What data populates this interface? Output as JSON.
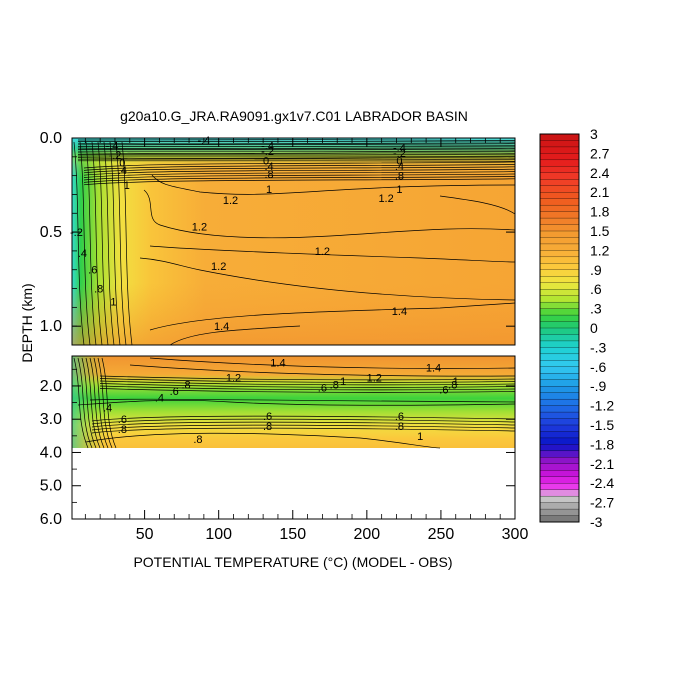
{
  "chart_data": {
    "type": "heatmap",
    "title": "g20a10.G_JRA.RA9091.gx1v7.C01 LABRADOR BASIN",
    "xlabel": "POTENTIAL TEMPERATURE (°C) (MODEL - OBS)",
    "ylabel": "DEPTH (km)",
    "x_ticks": [
      50,
      100,
      150,
      200,
      250,
      300
    ],
    "x_tick_labels": [
      "50",
      "100",
      "150",
      "200",
      "250",
      "300"
    ],
    "xlim": [
      1,
      300
    ],
    "upper_panel": {
      "ylim": [
        0.0,
        1.1
      ],
      "y_ticks": [
        0.0,
        0.5,
        1.0
      ],
      "y_tick_labels": [
        "0.0",
        "0.5",
        "1.0"
      ]
    },
    "lower_panel": {
      "ylim": [
        1.1,
        6.0
      ],
      "y_ticks": [
        2.0,
        3.0,
        4.0,
        5.0,
        6.0
      ],
      "y_tick_labels": [
        "2.0",
        "3.0",
        "4.0",
        "5.0",
        "6.0"
      ],
      "data_bottom_depth": 3.9
    },
    "colorbar": {
      "range": [
        -3,
        3
      ],
      "tick_values": [
        3,
        2.7,
        2.4,
        2.1,
        1.8,
        1.5,
        1.2,
        0.9,
        0.6,
        0.3,
        0,
        -0.3,
        -0.6,
        -0.9,
        -1.2,
        -1.5,
        -1.8,
        -2.1,
        -2.4,
        -2.7,
        -3
      ],
      "tick_labels": [
        "3",
        "2.7",
        "2.4",
        "2.1",
        "1.8",
        "1.5",
        "1.2",
        ".9",
        ".6",
        ".3",
        "0",
        "-.3",
        "-.6",
        "-.9",
        "-1.2",
        "-1.5",
        "-1.8",
        "-2.1",
        "-2.4",
        "-2.7",
        "-3"
      ],
      "stops": [
        {
          "v": 3.0,
          "c": "#c81414"
        },
        {
          "v": 2.6,
          "c": "#e41c1c"
        },
        {
          "v": 2.3,
          "c": "#f03c28"
        },
        {
          "v": 2.0,
          "c": "#f05a1e"
        },
        {
          "v": 1.7,
          "c": "#f07a28"
        },
        {
          "v": 1.45,
          "c": "#f39b30"
        },
        {
          "v": 1.2,
          "c": "#f7ad38"
        },
        {
          "v": 0.95,
          "c": "#fbc83c"
        },
        {
          "v": 0.7,
          "c": "#f0e640"
        },
        {
          "v": 0.45,
          "c": "#b4e632"
        },
        {
          "v": 0.2,
          "c": "#3cd23c"
        },
        {
          "v": 0.0,
          "c": "#1ec878"
        },
        {
          "v": -0.3,
          "c": "#1ed2d2"
        },
        {
          "v": -0.6,
          "c": "#32c8f0"
        },
        {
          "v": -0.9,
          "c": "#1e9be6"
        },
        {
          "v": -1.2,
          "c": "#1e6ee6"
        },
        {
          "v": -1.5,
          "c": "#1e3cdc"
        },
        {
          "v": -1.8,
          "c": "#0a14c8"
        },
        {
          "v": -2.05,
          "c": "#8c14c8"
        },
        {
          "v": -2.3,
          "c": "#d214dc"
        },
        {
          "v": -2.5,
          "c": "#f046f0"
        },
        {
          "v": -2.6,
          "c": "#d2d2d2"
        },
        {
          "v": -2.8,
          "c": "#a0a0a0"
        },
        {
          "v": -3.0,
          "c": "#6e6e6e"
        }
      ]
    },
    "contour_labels": [
      {
        "x": 90,
        "depth": 0.01,
        "text": "-.4"
      },
      {
        "x": 133,
        "depth": 0.04,
        "text": "-.4"
      },
      {
        "x": 133,
        "depth": 0.07,
        "text": "-.2"
      },
      {
        "x": 222,
        "depth": 0.05,
        "text": "-.4"
      },
      {
        "x": 222,
        "depth": 0.08,
        "text": "-.2"
      },
      {
        "x": 28,
        "depth": 0.04,
        "text": "-.4"
      },
      {
        "x": 30,
        "depth": 0.09,
        "text": "-.2"
      },
      {
        "x": 35,
        "depth": 0.13,
        "text": "0"
      },
      {
        "x": 35,
        "depth": 0.17,
        "text": ".4"
      },
      {
        "x": 132,
        "depth": 0.12,
        "text": "0"
      },
      {
        "x": 134,
        "depth": 0.15,
        "text": ".4"
      },
      {
        "x": 134,
        "depth": 0.19,
        "text": ".8"
      },
      {
        "x": 222,
        "depth": 0.12,
        "text": "0"
      },
      {
        "x": 222,
        "depth": 0.15,
        "text": ".4"
      },
      {
        "x": 222,
        "depth": 0.2,
        "text": ".8"
      },
      {
        "x": 38,
        "depth": 0.25,
        "text": "1"
      },
      {
        "x": 134,
        "depth": 0.27,
        "text": "1"
      },
      {
        "x": 222,
        "depth": 0.27,
        "text": "1"
      },
      {
        "x": 108,
        "depth": 0.33,
        "text": "1.2"
      },
      {
        "x": 213,
        "depth": 0.32,
        "text": "1.2"
      },
      {
        "x": 87,
        "depth": 0.47,
        "text": "1.2"
      },
      {
        "x": 170,
        "depth": 0.6,
        "text": "1.2"
      },
      {
        "x": 100,
        "depth": 0.68,
        "text": "1.2"
      },
      {
        "x": 4,
        "depth": 0.5,
        "text": "-.2"
      },
      {
        "x": 8,
        "depth": 0.61,
        "text": ".4"
      },
      {
        "x": 15,
        "depth": 0.7,
        "text": ".6"
      },
      {
        "x": 19,
        "depth": 0.8,
        "text": ".8"
      },
      {
        "x": 29,
        "depth": 0.87,
        "text": "1"
      },
      {
        "x": 102,
        "depth": 1.0,
        "text": "1.4"
      },
      {
        "x": 222,
        "depth": 0.92,
        "text": "1.4"
      },
      {
        "x": 140,
        "depth": 1.3,
        "text": "1.4"
      },
      {
        "x": 245,
        "depth": 1.45,
        "text": "1.4"
      },
      {
        "x": 110,
        "depth": 1.75,
        "text": "1.2"
      },
      {
        "x": 205,
        "depth": 1.75,
        "text": "1.2"
      },
      {
        "x": 78,
        "depth": 1.95,
        "text": ".8"
      },
      {
        "x": 70,
        "depth": 2.15,
        "text": ".6"
      },
      {
        "x": 60,
        "depth": 2.35,
        "text": ".4"
      },
      {
        "x": 170,
        "depth": 2.05,
        "text": ".6"
      },
      {
        "x": 178,
        "depth": 1.95,
        "text": ".8"
      },
      {
        "x": 184,
        "depth": 1.85,
        "text": "1"
      },
      {
        "x": 252,
        "depth": 2.1,
        "text": ".6"
      },
      {
        "x": 258,
        "depth": 1.95,
        "text": ".8"
      },
      {
        "x": 260,
        "depth": 1.85,
        "text": "1"
      },
      {
        "x": 25,
        "depth": 2.65,
        "text": ".4"
      },
      {
        "x": 35,
        "depth": 3.0,
        "text": ".6"
      },
      {
        "x": 35,
        "depth": 3.3,
        "text": ".8"
      },
      {
        "x": 133,
        "depth": 2.9,
        "text": ".6"
      },
      {
        "x": 133,
        "depth": 3.2,
        "text": ".8"
      },
      {
        "x": 222,
        "depth": 2.9,
        "text": ".6"
      },
      {
        "x": 222,
        "depth": 3.2,
        "text": ".8"
      },
      {
        "x": 86,
        "depth": 3.6,
        "text": ".8"
      },
      {
        "x": 236,
        "depth": 3.5,
        "text": "1"
      }
    ]
  }
}
